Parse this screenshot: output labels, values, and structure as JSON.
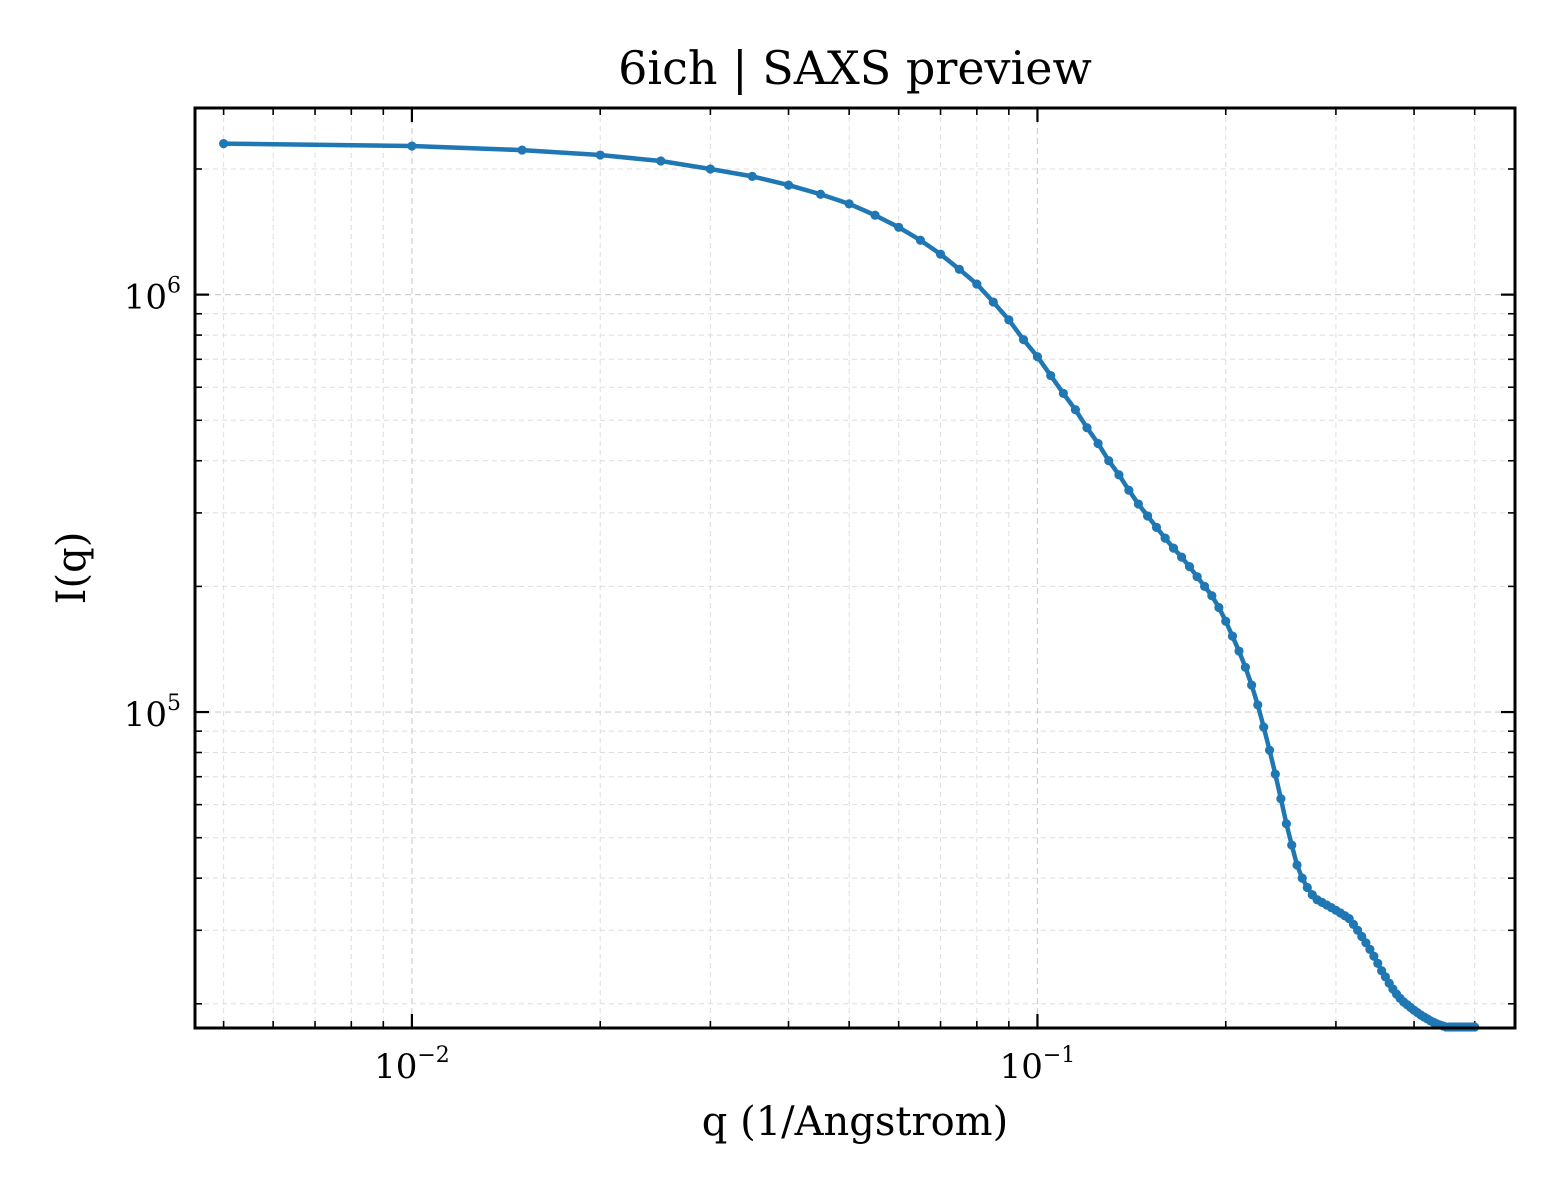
{
  "chart_data": {
    "type": "line",
    "title": "6ich | SAXS preview",
    "xlabel": "q (1/Angstrom)",
    "ylabel": "I(q)",
    "xscale": "log",
    "yscale": "log",
    "xlim": [
      0.0045,
      0.58
    ],
    "ylim": [
      17500,
      2800000
    ],
    "grid": true,
    "legend": "none",
    "x_ticks": [
      {
        "value": 0.01,
        "base": "10",
        "exp": "−2"
      },
      {
        "value": 0.1,
        "base": "10",
        "exp": "−1"
      }
    ],
    "y_ticks": [
      {
        "value": 100000,
        "base": "10",
        "exp": "5"
      },
      {
        "value": 1000000,
        "base": "10",
        "exp": "6"
      }
    ],
    "series": [
      {
        "color": "#1f77b4",
        "markers": true,
        "points": [
          [
            0.005,
            2300000
          ],
          [
            0.01,
            2270000
          ],
          [
            0.015,
            2220000
          ],
          [
            0.02,
            2160000
          ],
          [
            0.025,
            2090000
          ],
          [
            0.03,
            2000000
          ],
          [
            0.035,
            1920000
          ],
          [
            0.04,
            1830000
          ],
          [
            0.045,
            1740000
          ],
          [
            0.05,
            1650000
          ],
          [
            0.055,
            1550000
          ],
          [
            0.06,
            1450000
          ],
          [
            0.065,
            1350000
          ],
          [
            0.07,
            1250000
          ],
          [
            0.075,
            1150000
          ],
          [
            0.08,
            1060000
          ],
          [
            0.085,
            960000
          ],
          [
            0.09,
            870000
          ],
          [
            0.095,
            780000
          ],
          [
            0.1,
            710000
          ],
          [
            0.105,
            640000
          ],
          [
            0.11,
            580000
          ],
          [
            0.115,
            530000
          ],
          [
            0.12,
            480000
          ],
          [
            0.125,
            440000
          ],
          [
            0.13,
            400000
          ],
          [
            0.135,
            370000
          ],
          [
            0.14,
            340000
          ],
          [
            0.145,
            315000
          ],
          [
            0.15,
            295000
          ],
          [
            0.155,
            277000
          ],
          [
            0.16,
            261000
          ],
          [
            0.165,
            247000
          ],
          [
            0.17,
            235000
          ],
          [
            0.175,
            223000
          ],
          [
            0.18,
            211000
          ],
          [
            0.185,
            200000
          ],
          [
            0.19,
            190000
          ],
          [
            0.195,
            178000
          ],
          [
            0.2,
            165000
          ],
          [
            0.205,
            152000
          ],
          [
            0.21,
            140000
          ],
          [
            0.215,
            128000
          ],
          [
            0.22,
            116000
          ],
          [
            0.225,
            104000
          ],
          [
            0.23,
            92000
          ],
          [
            0.235,
            81000
          ],
          [
            0.24,
            71000
          ],
          [
            0.245,
            62000
          ],
          [
            0.25,
            54000
          ],
          [
            0.255,
            48000
          ],
          [
            0.26,
            43000
          ],
          [
            0.265,
            40000
          ],
          [
            0.27,
            38000
          ],
          [
            0.275,
            36500
          ],
          [
            0.28,
            35500
          ],
          [
            0.285,
            35000
          ],
          [
            0.29,
            34500
          ],
          [
            0.295,
            34000
          ],
          [
            0.3,
            33500
          ],
          [
            0.305,
            33000
          ],
          [
            0.31,
            32500
          ],
          [
            0.315,
            32000
          ],
          [
            0.32,
            31000
          ],
          [
            0.325,
            30000
          ],
          [
            0.33,
            29000
          ],
          [
            0.335,
            28000
          ],
          [
            0.34,
            27000
          ],
          [
            0.345,
            26000
          ],
          [
            0.35,
            25000
          ],
          [
            0.355,
            24000
          ],
          [
            0.36,
            23200
          ],
          [
            0.365,
            22400
          ],
          [
            0.37,
            21700
          ],
          [
            0.375,
            21100
          ],
          [
            0.38,
            20600
          ],
          [
            0.385,
            20200
          ],
          [
            0.39,
            19900
          ],
          [
            0.395,
            19600
          ],
          [
            0.4,
            19300
          ],
          [
            0.405,
            19050
          ],
          [
            0.41,
            18800
          ],
          [
            0.415,
            18600
          ],
          [
            0.42,
            18400
          ],
          [
            0.425,
            18200
          ],
          [
            0.43,
            18050
          ],
          [
            0.435,
            17900
          ],
          [
            0.44,
            17800
          ],
          [
            0.445,
            17700
          ],
          [
            0.45,
            17600
          ],
          [
            0.455,
            17600
          ],
          [
            0.46,
            17600
          ],
          [
            0.465,
            17600
          ],
          [
            0.47,
            17600
          ],
          [
            0.475,
            17600
          ],
          [
            0.48,
            17600
          ],
          [
            0.485,
            17600
          ],
          [
            0.49,
            17600
          ],
          [
            0.495,
            17600
          ],
          [
            0.5,
            17600
          ]
        ]
      }
    ]
  }
}
